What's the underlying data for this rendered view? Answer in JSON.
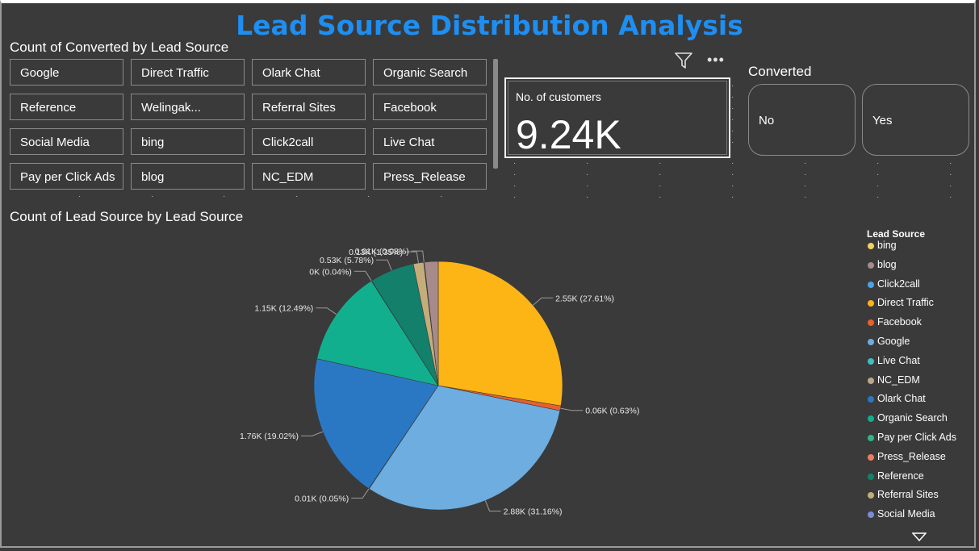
{
  "header": {
    "title": "Lead Source Distribution Analysis"
  },
  "slicer": {
    "title": "Count of Converted by Lead Source",
    "items": [
      "Google",
      "Direct Traffic",
      "Olark Chat",
      "Organic Search",
      "Reference",
      "Welingak...",
      "Referral Sites",
      "Facebook",
      "Social Media",
      "bing",
      "Click2call",
      "Live Chat",
      "Pay per Click Ads",
      "blog",
      "NC_EDM",
      "Press_Release"
    ]
  },
  "card": {
    "label": "No. of customers",
    "value": "9.24K"
  },
  "converted": {
    "title": "Converted",
    "options": [
      "No",
      "Yes"
    ]
  },
  "icons": {
    "filter": "filter-icon",
    "more": "more-options-icon",
    "scroll_down": "chevron-down-icon"
  },
  "chart_data": {
    "type": "pie",
    "title": "Count of Lead Source by Lead Source",
    "legend_title": "Lead Source",
    "legend": [
      {
        "name": "bing",
        "color": "#f2d35b"
      },
      {
        "name": "blog",
        "color": "#a78b8b"
      },
      {
        "name": "Click2call",
        "color": "#4ea1e8"
      },
      {
        "name": "Direct Traffic",
        "color": "#fdb515"
      },
      {
        "name": "Facebook",
        "color": "#e8602c"
      },
      {
        "name": "Google",
        "color": "#6eaddf"
      },
      {
        "name": "Live Chat",
        "color": "#3fbfbf"
      },
      {
        "name": "NC_EDM",
        "color": "#b9a88a"
      },
      {
        "name": "Olark Chat",
        "color": "#2a78c4"
      },
      {
        "name": "Organic Search",
        "color": "#12af8f"
      },
      {
        "name": "Pay per Click Ads",
        "color": "#2fb589"
      },
      {
        "name": "Press_Release",
        "color": "#ef7c5e"
      },
      {
        "name": "Reference",
        "color": "#13806c"
      },
      {
        "name": "Referral Sites",
        "color": "#c4ad7a"
      },
      {
        "name": "Social Media",
        "color": "#7a8cd6"
      }
    ],
    "slices": [
      {
        "name": "Direct Traffic",
        "value": 27.61,
        "color": "#fdb515",
        "label": "2.55K (27.61%)"
      },
      {
        "name": "Facebook",
        "value": 0.63,
        "color": "#e8602c",
        "label": "0.06K (0.63%)"
      },
      {
        "name": "Google",
        "value": 31.16,
        "color": "#6eaddf",
        "label": "2.88K (31.16%)"
      },
      {
        "name": "Live Chat",
        "value": 0.05,
        "color": "#3fbfbf",
        "label": "0.01K (0.05%)"
      },
      {
        "name": "Olark Chat",
        "value": 19.02,
        "color": "#2a78c4",
        "label": "1.76K (19.02%)"
      },
      {
        "name": "Organic Search",
        "value": 12.49,
        "color": "#12af8f",
        "label": "1.15K (12.49%)"
      },
      {
        "name": "Pay per Click Ads",
        "value": 0.04,
        "color": "#2fb589",
        "label": "0K (0.04%)"
      },
      {
        "name": "Reference",
        "value": 5.78,
        "color": "#13806c",
        "label": "0.53K (5.78%)"
      },
      {
        "name": "Referral Sites",
        "value": 1.35,
        "color": "#c4ad7a",
        "label": "0.13K (1.35%)"
      },
      {
        "name": "Social Media",
        "value": 0.08,
        "color": "#7a8cd6",
        "label": "0.01K (0.08%)"
      },
      {
        "name": "blog",
        "value": 1.79,
        "color": "#a78b8b",
        "label": ""
      }
    ]
  }
}
